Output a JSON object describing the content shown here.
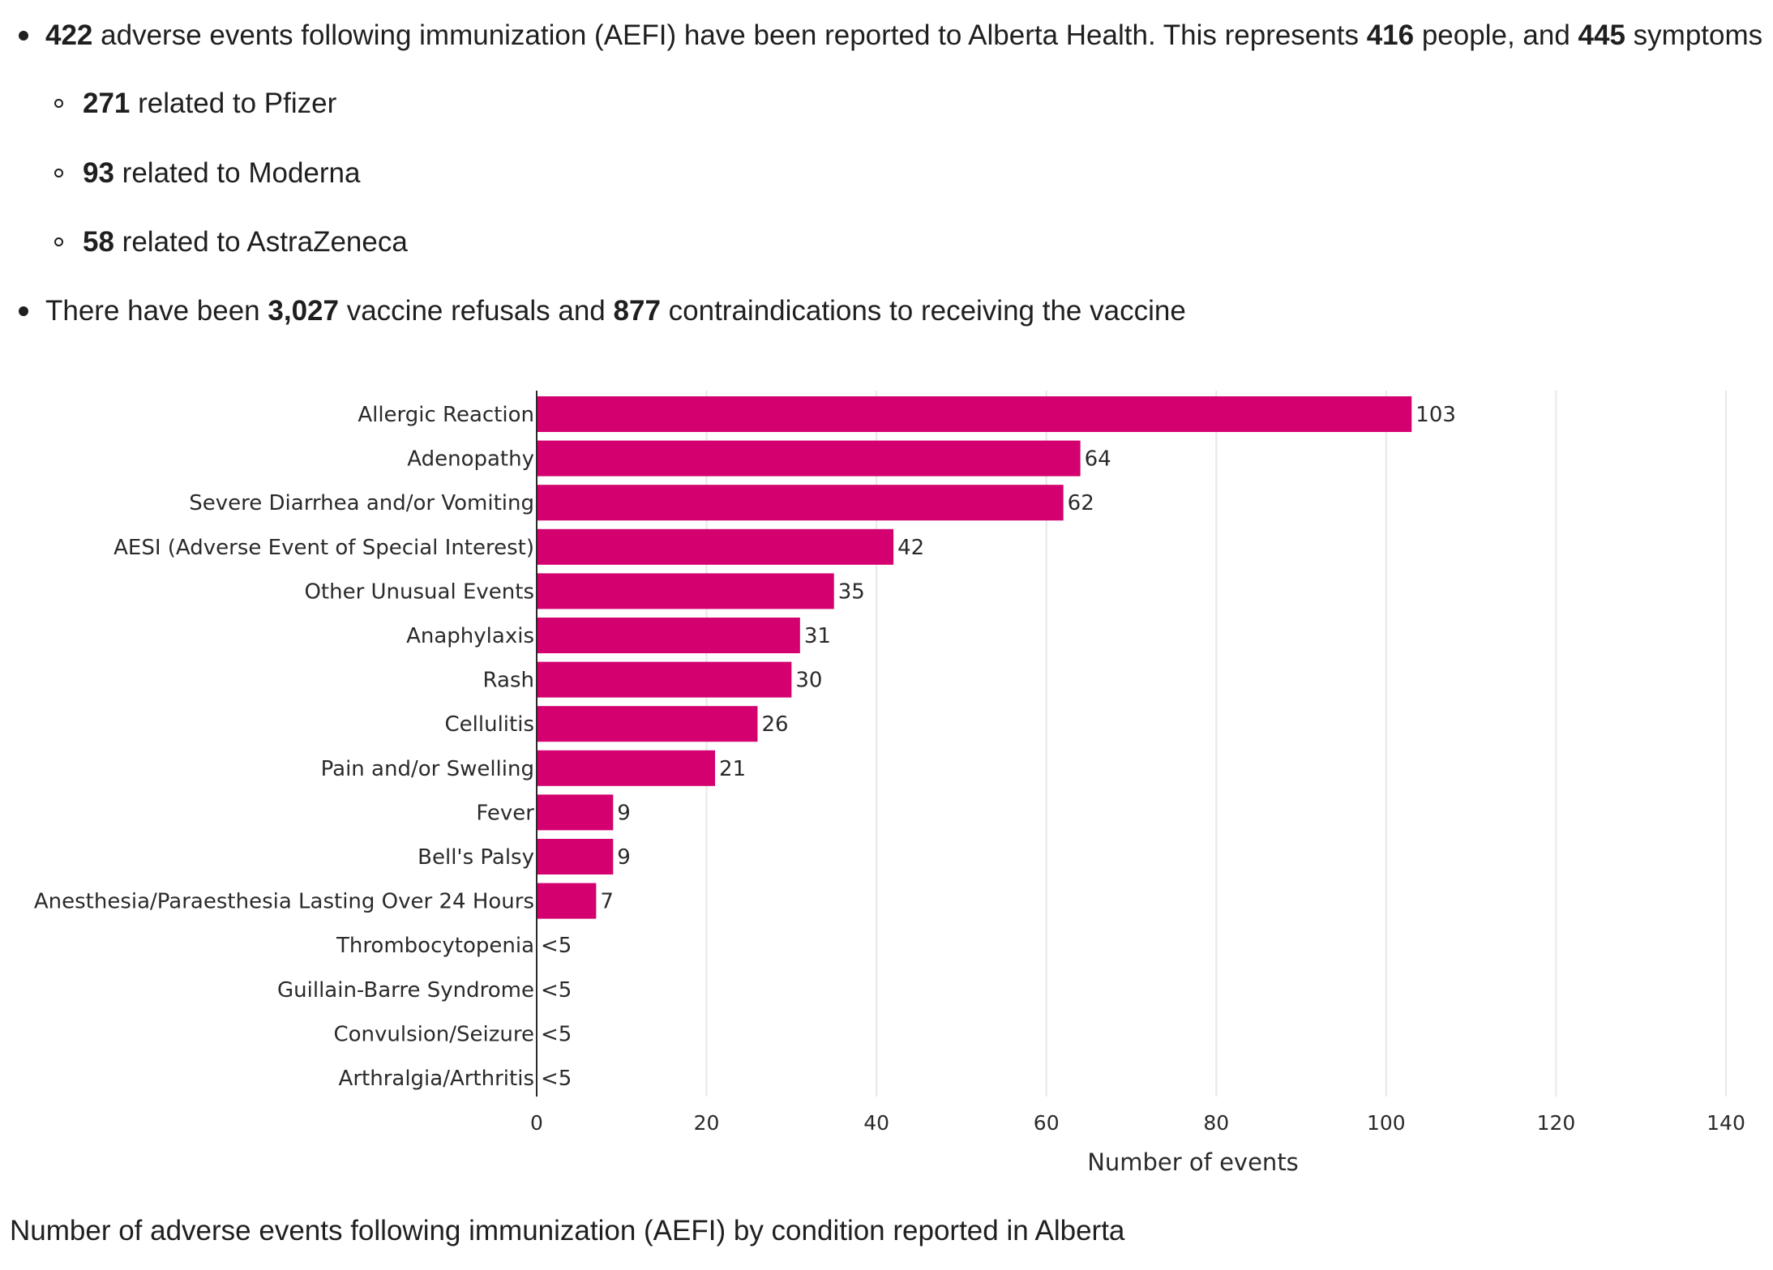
{
  "summary": {
    "line1": {
      "n_events": "422",
      "t1": "adverse events following immunization (AEFI) have been reported to Alberta Health. This represents",
      "n_people": "416",
      "t2": "people, and",
      "n_symptoms": "445",
      "t3": "symptoms"
    },
    "sub": [
      {
        "count": "271",
        "text": "related to Pfizer"
      },
      {
        "count": "93",
        "text": "related to Moderna"
      },
      {
        "count": "58",
        "text": "related to AstraZeneca"
      }
    ],
    "line2": {
      "t1": "There have been",
      "n_refusals": "3,027",
      "t2": "vaccine refusals and",
      "n_contra": "877",
      "t3": "contraindications to receiving the vaccine"
    }
  },
  "caption": "Number of adverse events following immunization (AEFI) by condition reported in Alberta",
  "chart_data": {
    "type": "bar",
    "orientation": "horizontal",
    "categories": [
      "Allergic Reaction",
      "Adenopathy",
      "Severe Diarrhea and/or Vomiting",
      "AESI (Adverse Event of Special Interest)",
      "Other Unusual Events",
      "Anaphylaxis",
      "Rash",
      "Cellulitis",
      "Pain and/or Swelling",
      "Fever",
      "Bell's Palsy",
      "Anesthesia/Paraesthesia Lasting Over 24 Hours",
      "Thrombocytopenia",
      "Guillain-Barre Syndrome",
      "Convulsion/Seizure",
      "Arthralgia/Arthritis"
    ],
    "values": [
      103,
      64,
      62,
      42,
      35,
      31,
      30,
      26,
      21,
      9,
      9,
      7,
      0,
      0,
      0,
      0
    ],
    "data_labels": [
      "103",
      "64",
      "62",
      "42",
      "35",
      "31",
      "30",
      "26",
      "21",
      "9",
      "9",
      "7",
      "<5",
      "<5",
      "<5",
      "<5"
    ],
    "xlabel": "Number of events",
    "xlim": [
      0,
      140
    ],
    "xticks": [
      0,
      20,
      40,
      60,
      80,
      100,
      120,
      140
    ],
    "grid": "vertical",
    "bar_color": "#d4006f"
  }
}
